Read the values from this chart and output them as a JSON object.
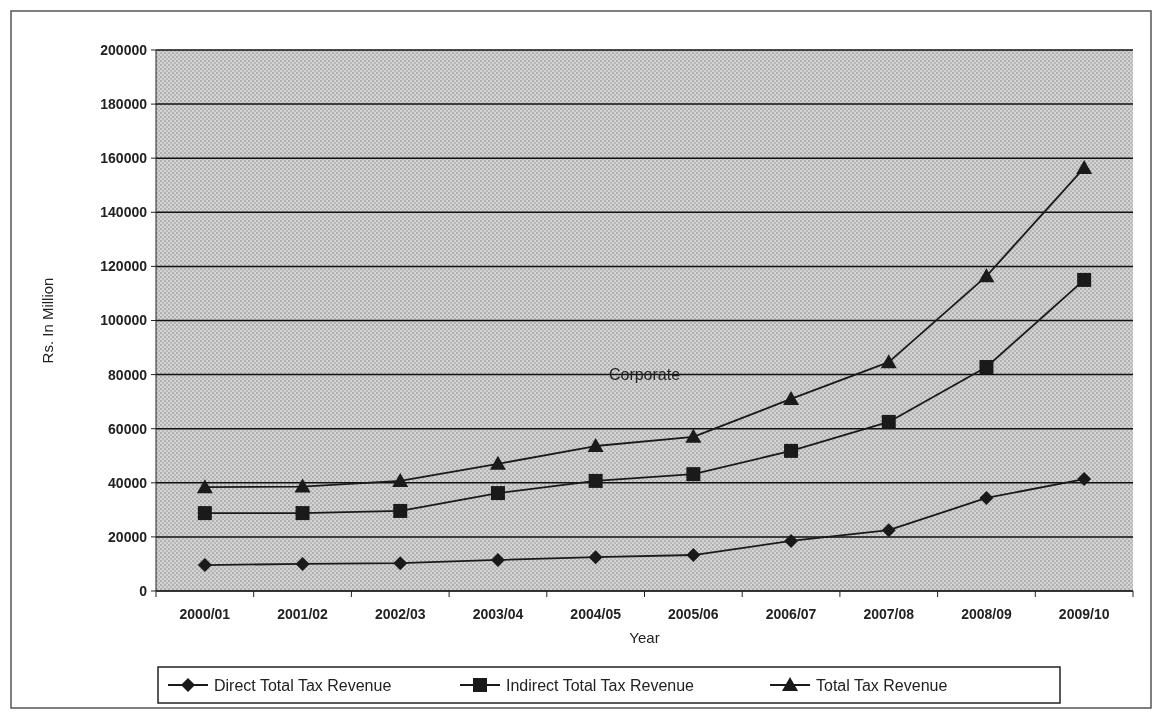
{
  "chart_data": {
    "type": "line",
    "xlabel": "Year",
    "ylabel": "Rs. In Million",
    "categories": [
      "2000/01",
      "2001/02",
      "2002/03",
      "2003/04",
      "2004/05",
      "2005/06",
      "2006/07",
      "2007/08",
      "2008/09",
      "2009/10"
    ],
    "series": [
      {
        "name": "Direct Total Tax Revenue",
        "color": "#1a1a1a",
        "marker": "diamond",
        "values": [
          9600,
          10000,
          10300,
          11500,
          12500,
          13300,
          18500,
          22500,
          34400,
          41400
        ]
      },
      {
        "name": "Indirect Total Tax Revenue",
        "color": "#1a1a1a",
        "marker": "square",
        "values": [
          28800,
          28800,
          29600,
          36200,
          40700,
          43200,
          51800,
          62500,
          82800,
          115000
        ]
      },
      {
        "name": "Total Tax Revenue",
        "color": "#1a1a1a",
        "marker": "triangle",
        "values": [
          38400,
          38600,
          40700,
          47000,
          53600,
          57000,
          71000,
          84600,
          116400,
          156400
        ]
      }
    ],
    "ylim": [
      0,
      200000
    ],
    "yticks": [
      0,
      20000,
      40000,
      60000,
      80000,
      100000,
      120000,
      140000,
      160000,
      180000,
      200000
    ],
    "grid": "y",
    "legend": "bottom",
    "line_style": "solid",
    "annotations": [
      "Corporate"
    ]
  }
}
